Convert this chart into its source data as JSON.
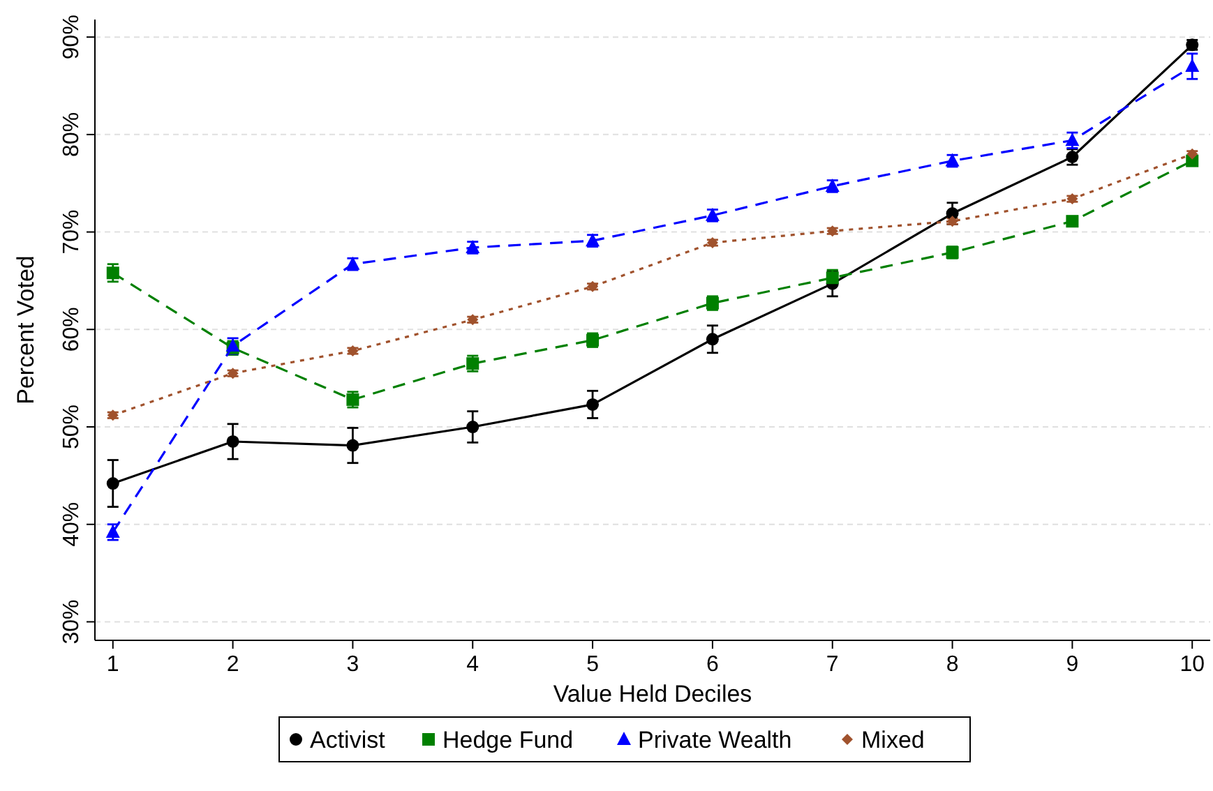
{
  "chart_data": {
    "type": "line",
    "xlabel": "Value Held Deciles",
    "ylabel": "Percent Voted",
    "x": [
      1,
      2,
      3,
      4,
      5,
      6,
      7,
      8,
      9,
      10
    ],
    "xlim": [
      0.85,
      10.15
    ],
    "xticks": [
      1,
      2,
      3,
      4,
      5,
      6,
      7,
      8,
      9,
      10
    ],
    "ylim": [
      28.1,
      91.8
    ],
    "yticks": [
      {
        "value": 30,
        "label": "30%"
      },
      {
        "value": 40,
        "label": "40%"
      },
      {
        "value": 50,
        "label": "50%"
      },
      {
        "value": 60,
        "label": "60%"
      },
      {
        "value": 70,
        "label": "70%"
      },
      {
        "value": 80,
        "label": "80%"
      },
      {
        "value": 90,
        "label": "90%"
      }
    ],
    "grid": "y",
    "legend": "bottom",
    "series": [
      {
        "name": "Activist",
        "color": "#000000",
        "marker": "circle",
        "line_style": "solid",
        "values": [
          44.2,
          48.5,
          48.1,
          50.0,
          52.3,
          59.0,
          64.7,
          71.9,
          77.7,
          89.2
        ],
        "errors": [
          2.4,
          1.8,
          1.8,
          1.6,
          1.4,
          1.4,
          1.3,
          1.1,
          0.8,
          0.5
        ]
      },
      {
        "name": "Hedge Fund",
        "color": "#008000",
        "marker": "square",
        "line_style": "dashed",
        "values": [
          65.8,
          58.1,
          52.8,
          56.5,
          58.9,
          62.7,
          65.3,
          67.9,
          71.1,
          77.3
        ],
        "errors": [
          0.9,
          0.7,
          0.8,
          0.8,
          0.7,
          0.7,
          0.8,
          0.6,
          0.5,
          0.4
        ]
      },
      {
        "name": "Private Wealth",
        "color": "#0000ff",
        "marker": "triangle",
        "line_style": "dashed",
        "values": [
          39.2,
          58.3,
          66.7,
          68.4,
          69.1,
          71.7,
          74.7,
          77.3,
          79.4,
          87.0
        ],
        "errors": [
          0.8,
          0.8,
          0.6,
          0.6,
          0.6,
          0.6,
          0.6,
          0.6,
          0.8,
          1.3
        ]
      },
      {
        "name": "Mixed",
        "color": "#a0522d",
        "marker": "diamond",
        "line_style": "dotted",
        "values": [
          51.2,
          55.5,
          57.8,
          61.0,
          64.4,
          68.9,
          70.1,
          71.1,
          73.4,
          78.0
        ],
        "errors": [
          0.3,
          0.3,
          0.3,
          0.3,
          0.3,
          0.3,
          0.3,
          0.3,
          0.3,
          0.3
        ]
      }
    ]
  }
}
